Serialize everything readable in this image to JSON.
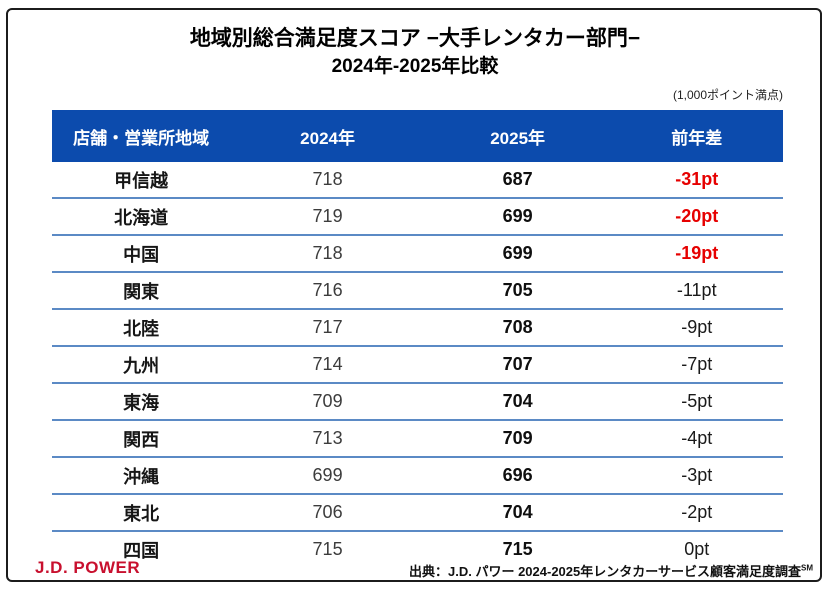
{
  "header": {
    "title_line1": "地域別総合満足度スコア −大手レンタカー部門−",
    "title_line2": "2024年-2025年比較",
    "note": "(1,000ポイント満点)"
  },
  "table": {
    "columns": [
      "店舗・営業所地域",
      "2024年",
      "2025年",
      "前年差"
    ],
    "rows": [
      {
        "region": "甲信越",
        "score_2024": "718",
        "score_2025": "687",
        "diff": "-31pt",
        "diff_red": true
      },
      {
        "region": "北海道",
        "score_2024": "719",
        "score_2025": "699",
        "diff": "-20pt",
        "diff_red": true
      },
      {
        "region": "中国",
        "score_2024": "718",
        "score_2025": "699",
        "diff": "-19pt",
        "diff_red": true
      },
      {
        "region": "関東",
        "score_2024": "716",
        "score_2025": "705",
        "diff": "-11pt",
        "diff_red": false
      },
      {
        "region": "北陸",
        "score_2024": "717",
        "score_2025": "708",
        "diff": "-9pt",
        "diff_red": false
      },
      {
        "region": "九州",
        "score_2024": "714",
        "score_2025": "707",
        "diff": "-7pt",
        "diff_red": false
      },
      {
        "region": "東海",
        "score_2024": "709",
        "score_2025": "704",
        "diff": "-5pt",
        "diff_red": false
      },
      {
        "region": "関西",
        "score_2024": "713",
        "score_2025": "709",
        "diff": "-4pt",
        "diff_red": false
      },
      {
        "region": "沖縄",
        "score_2024": "699",
        "score_2025": "696",
        "diff": "-3pt",
        "diff_red": false
      },
      {
        "region": "東北",
        "score_2024": "706",
        "score_2025": "704",
        "diff": "-2pt",
        "diff_red": false
      },
      {
        "region": "四国",
        "score_2024": "715",
        "score_2025": "715",
        "diff": "0pt",
        "diff_red": false
      }
    ]
  },
  "footer": {
    "logo_text": "J.D. POWER",
    "source_text": "出典：J.D. パワー 2024-2025年レンタカーサービス顧客満足度調査",
    "source_superscript": "SM"
  },
  "colors": {
    "header_bg": "#0c4bad",
    "row_divider": "#5b8ac5",
    "negative_red": "#e60000",
    "logo_red": "#c8102e",
    "frame_border": "#1c1c1c"
  },
  "chart_data": {
    "type": "table",
    "title": "地域別総合満足度スコア −大手レンタカー部門− 2024年-2025年比較",
    "scale_note": "1,000ポイント満点",
    "columns": [
      "店舗・営業所地域",
      "2024年",
      "2025年",
      "前年差"
    ],
    "rows": [
      [
        "甲信越",
        718,
        687,
        "-31pt"
      ],
      [
        "北海道",
        719,
        699,
        "-20pt"
      ],
      [
        "中国",
        718,
        699,
        "-19pt"
      ],
      [
        "関東",
        716,
        705,
        "-11pt"
      ],
      [
        "北陸",
        717,
        708,
        "-9pt"
      ],
      [
        "九州",
        714,
        707,
        "-7pt"
      ],
      [
        "東海",
        709,
        704,
        "-5pt"
      ],
      [
        "関西",
        713,
        709,
        "-4pt"
      ],
      [
        "沖縄",
        699,
        696,
        "-3pt"
      ],
      [
        "東北",
        706,
        704,
        "-2pt"
      ],
      [
        "四国",
        715,
        715,
        "0pt"
      ]
    ],
    "red_highlighted_diffs": [
      "-31pt",
      "-20pt",
      "-19pt"
    ],
    "source": "出典：J.D. パワー 2024-2025年レンタカーサービス顧客満足度調査SM"
  }
}
